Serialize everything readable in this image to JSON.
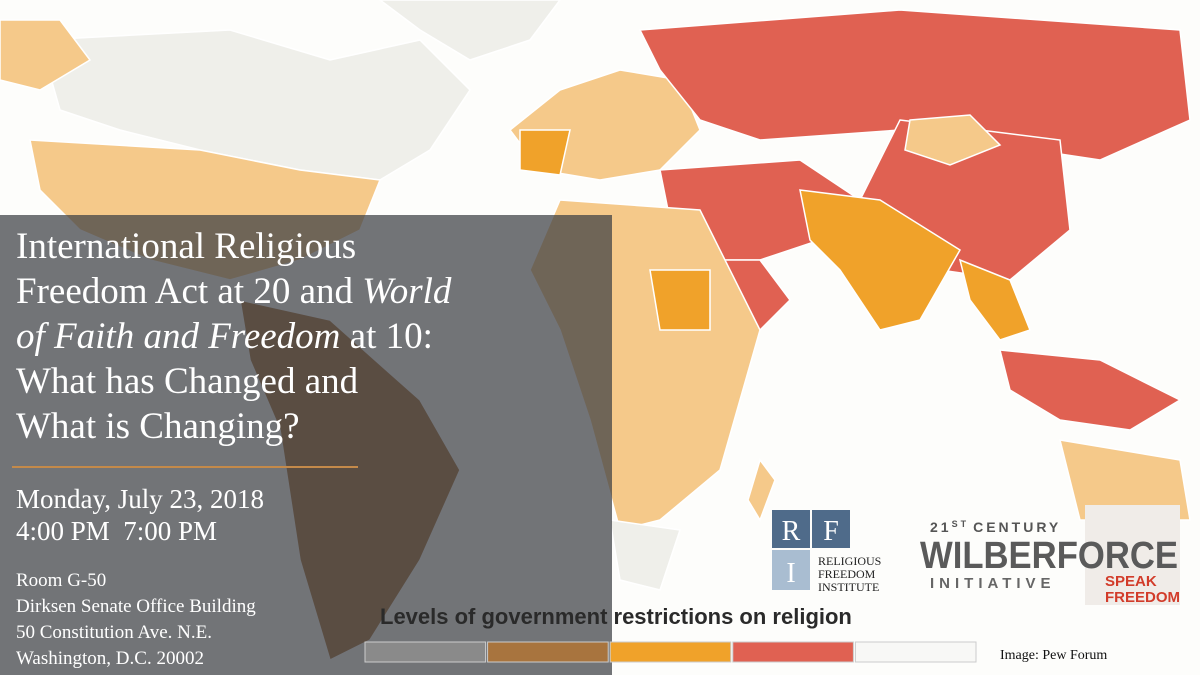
{
  "event": {
    "title": {
      "lines": [
        [
          {
            "text": "International Religious",
            "italic": false
          }
        ],
        [
          {
            "text": "Freedom Act at 20 and ",
            "italic": false
          },
          {
            "text": "World",
            "italic": true
          }
        ],
        [
          {
            "text": "of Faith and Freedom",
            "italic": true
          },
          {
            "text": " at 10:",
            "italic": false
          }
        ],
        [
          {
            "text": "What has Changed and",
            "italic": false
          }
        ],
        [
          {
            "text": "What is Changing?",
            "italic": false
          }
        ]
      ]
    },
    "date": "Monday, July 23, 2018",
    "time": "4:00 PM  7:00 PM",
    "address": [
      "Room G-50",
      "Dirksen Senate Office Building",
      "50 Constitution Ave. N.E.",
      "Washington, D.C. 20002"
    ]
  },
  "map": {
    "legend_title": "Levels of government restrictions on religion",
    "legend_colors": [
      "#8a8a8a",
      "#a8743e",
      "#f0a22a",
      "#e06152",
      "#f8f8f6"
    ],
    "credit": "Image: Pew Forum"
  },
  "logos": {
    "rfi": {
      "letters": [
        "R",
        "F",
        "I"
      ],
      "lines": [
        "RELIGIOUS",
        "FREEDOM",
        "INSTITUTE"
      ]
    },
    "wilberforce": {
      "century": "21",
      "century_sup": "ST",
      "century_word": "CENTURY",
      "name": "WILBERFORCE",
      "initiative": "INITIATIVE",
      "tag": [
        "SPEAK",
        "FREEDOM"
      ]
    }
  }
}
